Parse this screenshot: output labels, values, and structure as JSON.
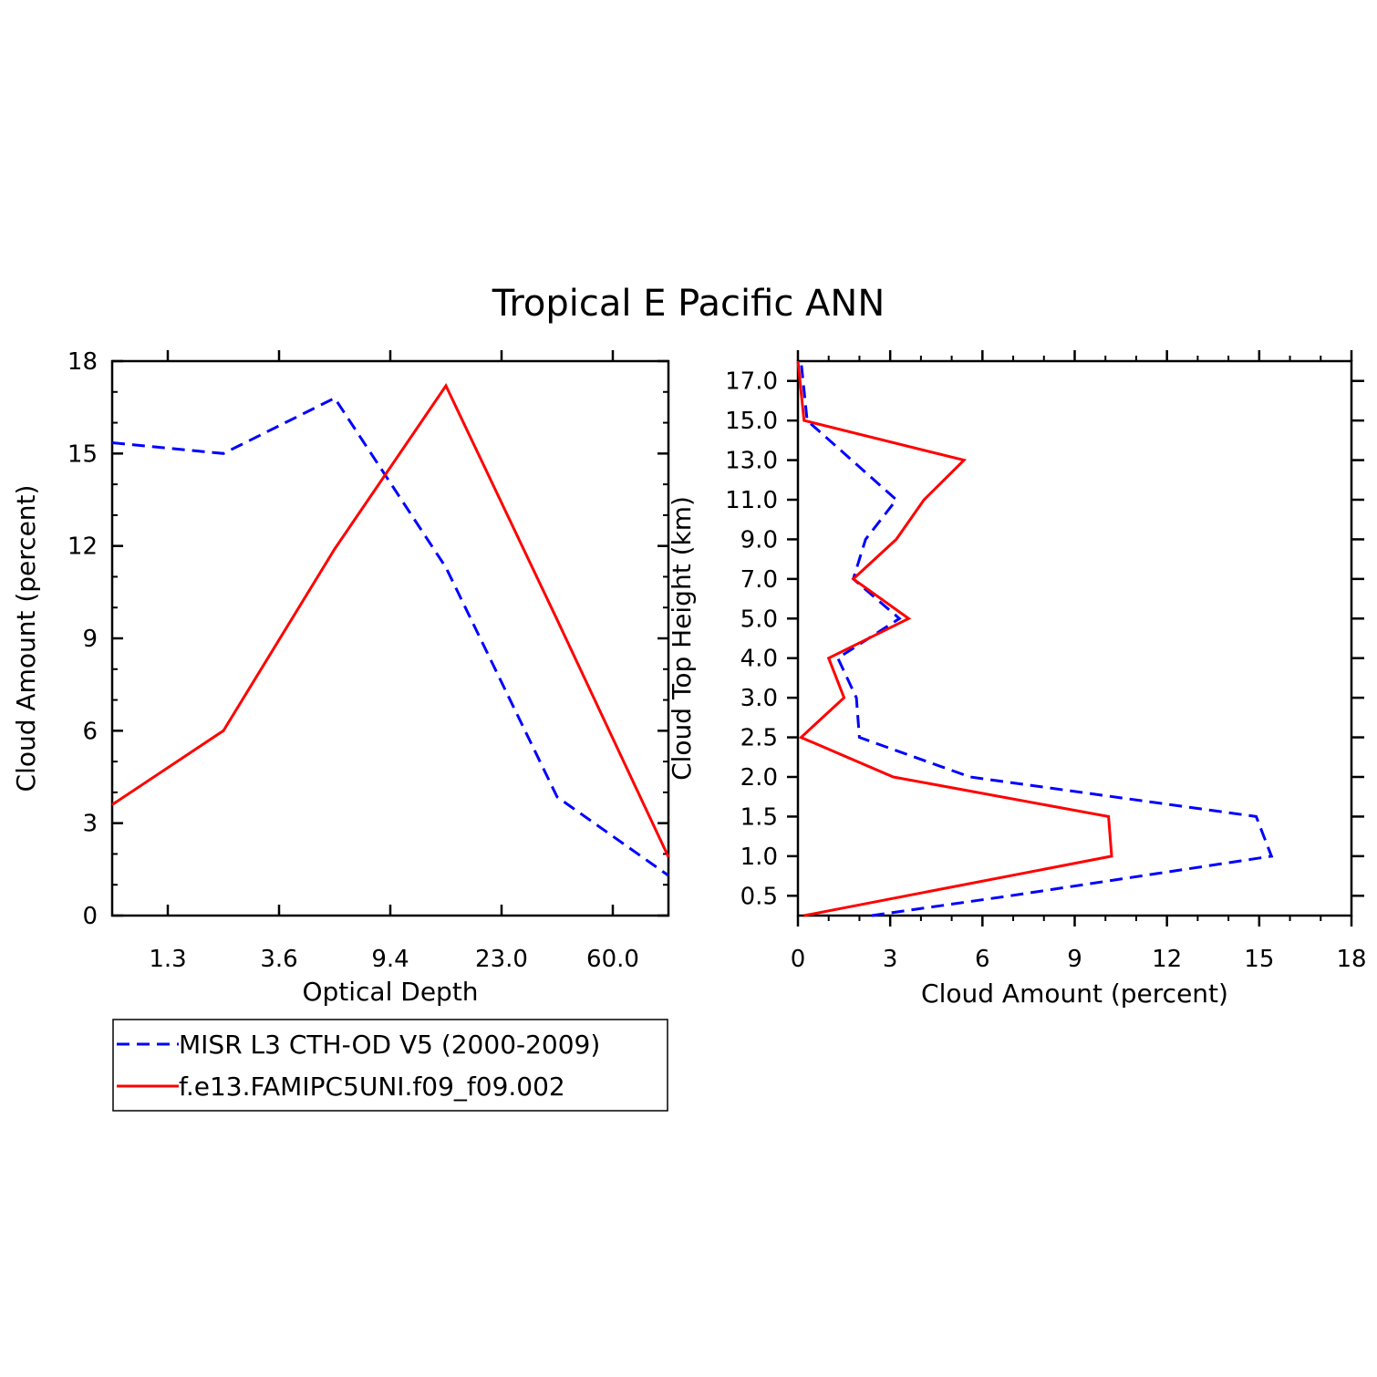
{
  "title": "Tropical E Pacific ANN",
  "colors": {
    "obs": "#0000ff",
    "model": "#ff0000",
    "axis": "#000000"
  },
  "legend": {
    "entries": [
      {
        "series": "obs",
        "label": "MISR L3 CTH-OD V5 (2000-2009)",
        "style": "dashed"
      },
      {
        "series": "model",
        "label": "f.e13.FAMIPC5UNI.f09_f09.002",
        "style": "solid"
      }
    ]
  },
  "chart_data": [
    {
      "type": "line",
      "title": "",
      "xlabel": "Optical Depth",
      "ylabel": "Cloud Amount (percent)",
      "x_index_range": [
        0,
        5
      ],
      "x_ticks": [
        "1.3",
        "3.6",
        "9.4",
        "23.0",
        "60.0"
      ],
      "ylim": [
        0,
        18
      ],
      "y_ticks": [
        0,
        3,
        6,
        9,
        12,
        15,
        18
      ],
      "series": [
        {
          "key": "obs",
          "name": "MISR L3 CTH-OD V5 (2000-2009)",
          "x": [
            0,
            1,
            2,
            3,
            4,
            5
          ],
          "values": [
            15.35,
            15.0,
            16.8,
            11.3,
            3.85,
            1.3
          ]
        },
        {
          "key": "model",
          "name": "f.e13.FAMIPC5UNI.f09_f09.002",
          "x": [
            0,
            1,
            2,
            3,
            4,
            5
          ],
          "values": [
            3.6,
            6.0,
            11.9,
            17.2,
            9.6,
            1.9
          ]
        }
      ]
    },
    {
      "type": "line",
      "title": "",
      "xlabel": "Cloud Amount (percent)",
      "ylabel": "Cloud Top Height (km)",
      "xlim": [
        0,
        18
      ],
      "x_ticks": [
        0,
        3,
        6,
        9,
        12,
        15,
        18
      ],
      "y_index_range": [
        0,
        14
      ],
      "y_ticks": [
        "0.5",
        "1.0",
        "1.5",
        "2.0",
        "2.5",
        "3.0",
        "4.0",
        "5.0",
        "7.0",
        "9.0",
        "11.0",
        "13.0",
        "15.0",
        "17.0"
      ],
      "series": [
        {
          "key": "obs",
          "name": "MISR L3 CTH-OD V5 (2000-2009)",
          "x": [
            2.4,
            6.9,
            15.4,
            14.9,
            5.6,
            2.0,
            1.9,
            1.3,
            3.3,
            1.8,
            2.2,
            3.2,
            0.3,
            0.1
          ],
          "y": [
            0,
            0.5,
            1.5,
            2.5,
            3.5,
            4.5,
            5.5,
            6.5,
            7.5,
            8.5,
            9.5,
            10.5,
            12.5,
            14
          ]
        },
        {
          "key": "model",
          "name": "f.e13.FAMIPC5UNI.f09_f09.002",
          "x": [
            0.2,
            10.2,
            10.1,
            3.1,
            0.1,
            1.5,
            1.0,
            3.6,
            1.8,
            3.2,
            4.1,
            5.4,
            0.2,
            0.0
          ],
          "y": [
            0,
            1.5,
            2.5,
            3.5,
            4.5,
            5.5,
            6.5,
            7.5,
            8.5,
            9.5,
            10.5,
            11.5,
            12.5,
            14
          ]
        }
      ]
    }
  ]
}
